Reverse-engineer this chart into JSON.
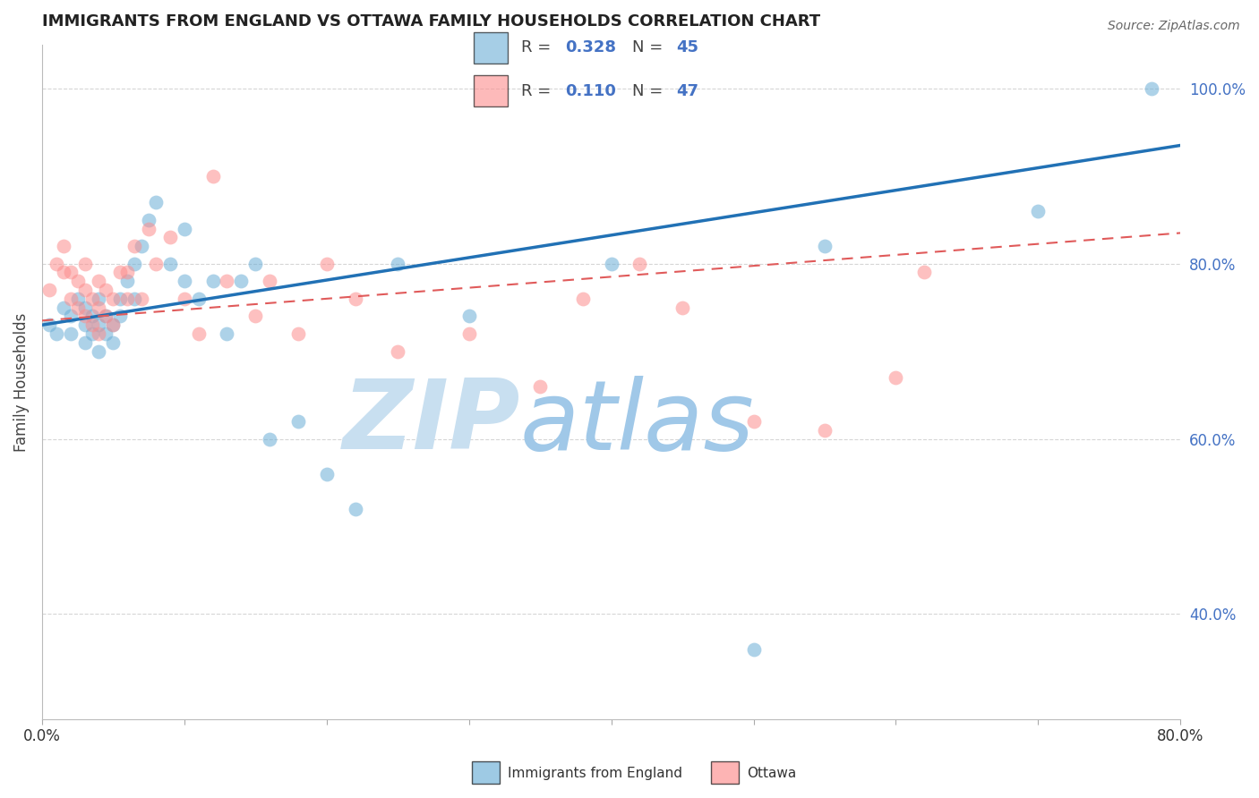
{
  "title": "IMMIGRANTS FROM ENGLAND VS OTTAWA FAMILY HOUSEHOLDS CORRELATION CHART",
  "source": "Source: ZipAtlas.com",
  "ylabel": "Family Households",
  "blue_label": "Immigrants from England",
  "pink_label": "Ottawa",
  "blue_R": 0.328,
  "blue_N": 45,
  "pink_R": 0.11,
  "pink_N": 47,
  "xlim": [
    0.0,
    0.8
  ],
  "ylim": [
    0.28,
    1.05
  ],
  "right_yticks": [
    0.4,
    0.6,
    0.8,
    1.0
  ],
  "right_yticklabels": [
    "40.0%",
    "60.0%",
    "80.0%",
    "100.0%"
  ],
  "grid_color": "#cccccc",
  "blue_color": "#6baed6",
  "pink_color": "#fc8d8d",
  "blue_line_color": "#2171b5",
  "pink_line_color": "#e05a5a",
  "watermark_zip": "ZIP",
  "watermark_atlas": "atlas",
  "watermark_color_zip": "#c8dff0",
  "watermark_color_atlas": "#a0c8e8",
  "title_fontsize": 13,
  "blue_line_x0": 0.0,
  "blue_line_y0": 0.73,
  "blue_line_x1": 0.8,
  "blue_line_y1": 0.935,
  "pink_line_x0": 0.0,
  "pink_line_y0": 0.735,
  "pink_line_x1": 0.8,
  "pink_line_y1": 0.835,
  "blue_x": [
    0.005,
    0.01,
    0.015,
    0.02,
    0.02,
    0.025,
    0.03,
    0.03,
    0.03,
    0.035,
    0.035,
    0.04,
    0.04,
    0.04,
    0.045,
    0.045,
    0.05,
    0.05,
    0.055,
    0.055,
    0.06,
    0.065,
    0.065,
    0.07,
    0.075,
    0.08,
    0.09,
    0.1,
    0.1,
    0.11,
    0.12,
    0.13,
    0.14,
    0.15,
    0.16,
    0.18,
    0.2,
    0.22,
    0.25,
    0.3,
    0.4,
    0.5,
    0.55,
    0.7,
    0.78
  ],
  "blue_y": [
    0.73,
    0.72,
    0.75,
    0.74,
    0.72,
    0.76,
    0.73,
    0.71,
    0.75,
    0.72,
    0.74,
    0.7,
    0.73,
    0.76,
    0.72,
    0.74,
    0.71,
    0.73,
    0.74,
    0.76,
    0.78,
    0.8,
    0.76,
    0.82,
    0.85,
    0.87,
    0.8,
    0.84,
    0.78,
    0.76,
    0.78,
    0.72,
    0.78,
    0.8,
    0.6,
    0.62,
    0.56,
    0.52,
    0.8,
    0.74,
    0.8,
    0.36,
    0.82,
    0.86,
    1.0
  ],
  "pink_x": [
    0.005,
    0.01,
    0.015,
    0.015,
    0.02,
    0.02,
    0.025,
    0.025,
    0.03,
    0.03,
    0.03,
    0.035,
    0.035,
    0.04,
    0.04,
    0.04,
    0.045,
    0.045,
    0.05,
    0.05,
    0.055,
    0.06,
    0.06,
    0.065,
    0.07,
    0.075,
    0.08,
    0.09,
    0.1,
    0.11,
    0.12,
    0.13,
    0.15,
    0.16,
    0.18,
    0.2,
    0.22,
    0.25,
    0.3,
    0.35,
    0.38,
    0.42,
    0.45,
    0.5,
    0.55,
    0.6,
    0.62
  ],
  "pink_y": [
    0.77,
    0.8,
    0.79,
    0.82,
    0.76,
    0.79,
    0.75,
    0.78,
    0.74,
    0.77,
    0.8,
    0.73,
    0.76,
    0.72,
    0.75,
    0.78,
    0.74,
    0.77,
    0.73,
    0.76,
    0.79,
    0.76,
    0.79,
    0.82,
    0.76,
    0.84,
    0.8,
    0.83,
    0.76,
    0.72,
    0.9,
    0.78,
    0.74,
    0.78,
    0.72,
    0.8,
    0.76,
    0.7,
    0.72,
    0.66,
    0.76,
    0.8,
    0.75,
    0.62,
    0.61,
    0.67,
    0.79
  ]
}
